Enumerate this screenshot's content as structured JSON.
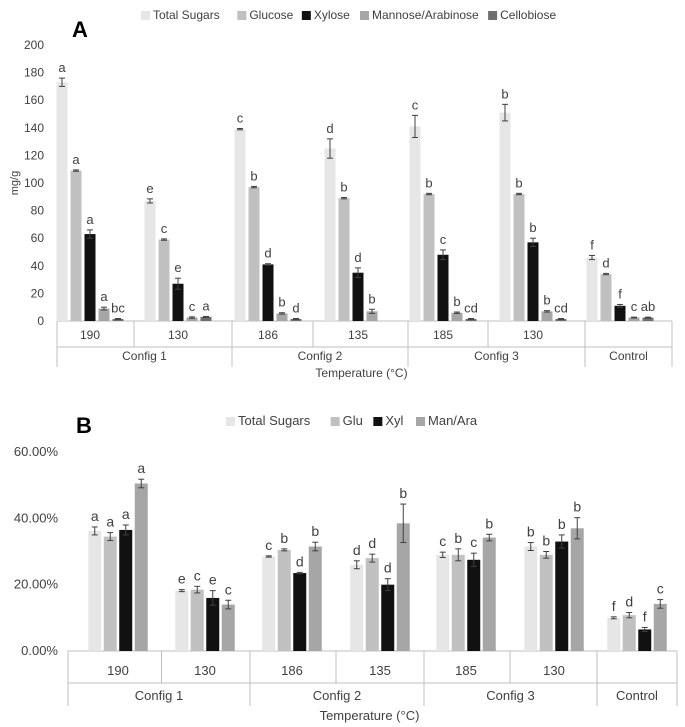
{
  "colors": {
    "total_sugars": "#e6e6e6",
    "glucose": "#c0c0c0",
    "xylose": "#111111",
    "mannose_arabinose": "#a6a6a6",
    "cellobiose": "#6e6e6e",
    "axis": "#bfbfbf",
    "text": "#404040"
  },
  "chart_data": [
    {
      "panel": "A",
      "type": "bar",
      "title": "",
      "ylabel": "mg/g",
      "xlabel": "Temperature (°C)",
      "ylim": [
        0,
        200
      ],
      "yticks": [
        "0",
        "20",
        "40",
        "60",
        "80",
        "100",
        "120",
        "140",
        "160",
        "180",
        "200"
      ],
      "ytick_values": [
        0,
        20,
        40,
        60,
        80,
        100,
        120,
        140,
        160,
        180,
        200
      ],
      "legend_position": "top",
      "groups": [
        "Config 1",
        "Config 2",
        "Config 3",
        "Control"
      ],
      "categories": [
        {
          "label": "190",
          "group": "Config 1"
        },
        {
          "label": "130",
          "group": "Config 1"
        },
        {
          "label": "186",
          "group": "Config 2"
        },
        {
          "label": "135",
          "group": "Config 2"
        },
        {
          "label": "185",
          "group": "Config 3"
        },
        {
          "label": "130",
          "group": "Config 3"
        },
        {
          "label": "",
          "group": "Control"
        }
      ],
      "series": [
        {
          "name": "Total Sugars",
          "color_key": "total_sugars",
          "values": [
            173,
            87,
            139,
            125,
            141,
            151,
            46
          ],
          "errors": [
            3,
            1.5,
            0.5,
            7,
            8,
            6,
            1.5
          ],
          "letters": [
            "a",
            "e",
            "c",
            "d",
            "c",
            "b",
            "f"
          ]
        },
        {
          "name": "Glucose",
          "color_key": "glucose",
          "values": [
            109,
            59,
            97,
            89,
            92,
            92,
            34
          ],
          "errors": [
            0.5,
            0.5,
            0.5,
            0.5,
            0.5,
            0.5,
            0.5
          ],
          "letters": [
            "a",
            "c",
            "b",
            "b",
            "b",
            "b",
            "d"
          ]
        },
        {
          "name": "Xylose",
          "color_key": "xylose",
          "values": [
            63,
            27,
            41,
            35,
            48,
            57,
            11
          ],
          "errors": [
            3,
            4,
            0.5,
            3.5,
            3.5,
            3,
            1
          ],
          "letters": [
            "a",
            "e",
            "d",
            "d",
            "c",
            "b",
            "f"
          ]
        },
        {
          "name": "Mannose/Arabinose",
          "color_key": "mannose_arabinose",
          "values": [
            9,
            2.5,
            5.5,
            7,
            6,
            7,
            2.5
          ],
          "errors": [
            1,
            0.5,
            0.5,
            1.5,
            0.5,
            0.5,
            0.3
          ],
          "letters": [
            "a",
            "c",
            "b",
            "b",
            "b",
            "b",
            "c"
          ]
        },
        {
          "name": "Cellobiose",
          "color_key": "cellobiose",
          "values": [
            1.5,
            3,
            1.5,
            0,
            1.5,
            1.5,
            2.5
          ],
          "errors": [
            0.3,
            0.3,
            0.3,
            0,
            0.3,
            0.3,
            0.3
          ],
          "letters": [
            "bc",
            "a",
            "d",
            "",
            "cd",
            "cd",
            "ab"
          ]
        }
      ]
    },
    {
      "panel": "B",
      "type": "bar",
      "title": "",
      "ylabel": "",
      "xlabel": "Temperature (°C)",
      "ylim": [
        0,
        60
      ],
      "yticks": [
        "0.00%",
        "20.00%",
        "40.00%",
        "60.00%"
      ],
      "ytick_values": [
        0,
        20,
        40,
        60
      ],
      "legend_position": "top",
      "groups": [
        "Config 1",
        "Config 2",
        "Config 3",
        "Control"
      ],
      "categories": [
        {
          "label": "190",
          "group": "Config 1"
        },
        {
          "label": "130",
          "group": "Config 1"
        },
        {
          "label": "186",
          "group": "Config 2"
        },
        {
          "label": "135",
          "group": "Config 2"
        },
        {
          "label": "185",
          "group": "Config 3"
        },
        {
          "label": "130",
          "group": "Config 3"
        },
        {
          "label": "",
          "group": "Control"
        }
      ],
      "series": [
        {
          "name": "Total Sugars",
          "color_key": "total_sugars",
          "values": [
            36.2,
            18.2,
            28.5,
            26.0,
            29.0,
            31.5,
            10.0
          ],
          "errors": [
            1.2,
            0.3,
            0.2,
            1.2,
            0.8,
            1.2,
            0.3
          ],
          "letters": [
            "a",
            "e",
            "c",
            "d",
            "c",
            "b",
            "f"
          ]
        },
        {
          "name": "Glu",
          "color_key": "glucose",
          "values": [
            34.5,
            18.5,
            30.5,
            28.0,
            29.0,
            29.0,
            10.8
          ],
          "errors": [
            1.2,
            1.0,
            0.3,
            1.2,
            1.8,
            1.0,
            0.8
          ],
          "letters": [
            "a",
            "c",
            "b",
            "d",
            "b",
            "b",
            "d"
          ]
        },
        {
          "name": "Xyl",
          "color_key": "xylose",
          "values": [
            36.5,
            16.0,
            23.5,
            20.0,
            27.5,
            33.0,
            6.5
          ],
          "errors": [
            1.5,
            2.2,
            0.2,
            1.8,
            2.0,
            2.0,
            0.6
          ],
          "letters": [
            "a",
            "e",
            "d",
            "d",
            "c",
            "b",
            "f"
          ]
        },
        {
          "name": "Man/Ara",
          "color_key": "mannose_arabinose",
          "values": [
            50.5,
            14.0,
            31.5,
            38.5,
            34.2,
            37.0,
            14.2
          ],
          "errors": [
            1.3,
            1.3,
            1.3,
            5.8,
            1.0,
            3.2,
            1.3
          ],
          "letters": [
            "a",
            "c",
            "b",
            "b",
            "b",
            "b",
            "c"
          ]
        }
      ]
    }
  ]
}
